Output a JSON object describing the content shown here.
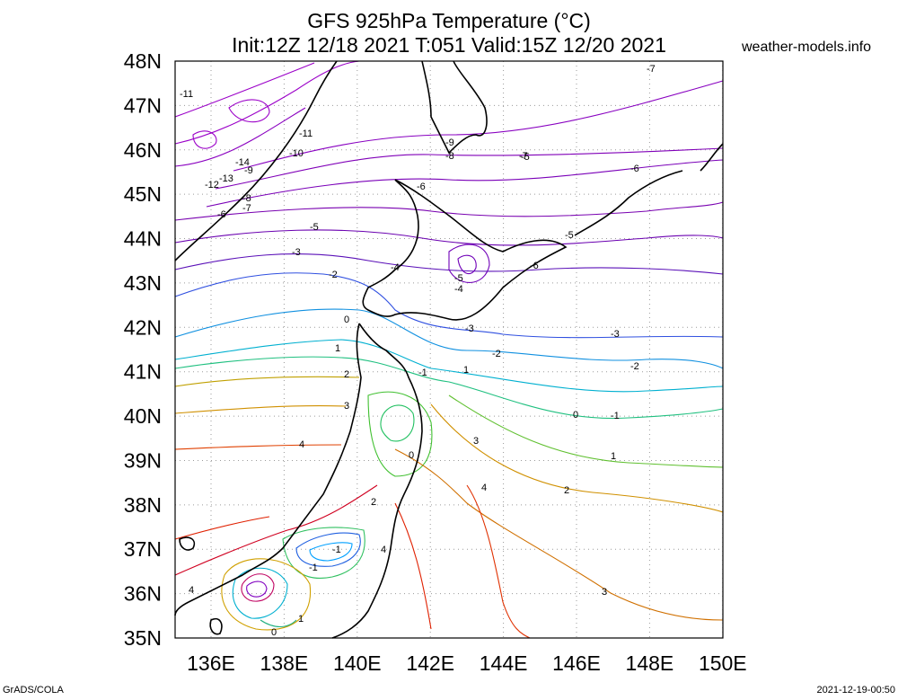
{
  "header": {
    "title_line1": "GFS 925hPa Temperature (°C)",
    "title_line2": "Init:12Z 12/18 2021 T:051 Valid:15Z 12/20 2021",
    "brand": "weather-models.info"
  },
  "axes": {
    "lat_labels": [
      "48N",
      "47N",
      "46N",
      "45N",
      "44N",
      "43N",
      "42N",
      "41N",
      "40N",
      "39N",
      "38N",
      "37N",
      "36N",
      "35N"
    ],
    "lon_labels": [
      "136E",
      "138E",
      "140E",
      "142E",
      "144E",
      "146E",
      "148E",
      "150E"
    ]
  },
  "contour_labels": [
    "-11",
    "-11",
    "-10",
    "-9",
    "-14",
    "-13",
    "-12",
    "-8",
    "-7",
    "-6",
    "-5",
    "-3",
    "-2",
    "0",
    "1",
    "2",
    "3",
    "4",
    "-9",
    "-8",
    "-7",
    "-6",
    "-6",
    "-5",
    "-4",
    "-6",
    "-5",
    "-4",
    "-3",
    "-2",
    "-1",
    "1",
    "-3",
    "-2",
    "0",
    "-1",
    "1",
    "3",
    "0",
    "2",
    "4",
    "-1",
    "2",
    "4",
    "1",
    "0",
    "-1",
    "4",
    "3",
    "-7",
    "-5"
  ],
  "footer": {
    "left": "GrADS/COLA",
    "right": "2021-12-19-00:50"
  },
  "colors": {
    "frame": "#000000",
    "grid": "#9a9a9a",
    "coast": "#000000",
    "cold": "#8c00c8",
    "cool": "#0050ff",
    "mild": "#00b060",
    "warm": "#e08000",
    "hot": "#e00000"
  }
}
